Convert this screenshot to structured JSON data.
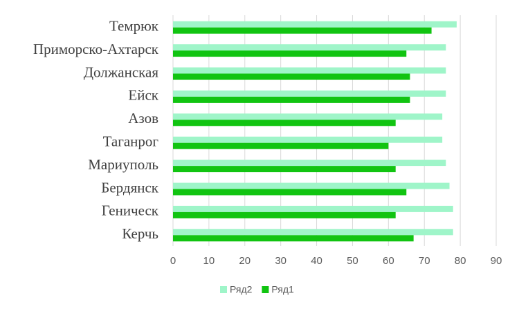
{
  "chart_data": {
    "type": "bar",
    "orientation": "horizontal",
    "categories": [
      "Темрюк",
      "Приморско-Ахтарск",
      "Должанская",
      "Ейск",
      "Азов",
      "Таганрог",
      "Мариуполь",
      "Бердянск",
      "Геническ",
      "Керчь"
    ],
    "series": [
      {
        "name": "Ряд2",
        "color": "#9ff5c9",
        "values": [
          79,
          76,
          76,
          76,
          75,
          75,
          76,
          77,
          78,
          78
        ]
      },
      {
        "name": "Ряд1",
        "color": "#11c411",
        "values": [
          72,
          65,
          66,
          66,
          62,
          60,
          62,
          65,
          62,
          67
        ]
      }
    ],
    "xlim": [
      0,
      90
    ],
    "xticks": [
      0,
      10,
      20,
      30,
      40,
      50,
      60,
      70,
      80,
      90
    ],
    "grid": true,
    "legend": "bottom"
  }
}
